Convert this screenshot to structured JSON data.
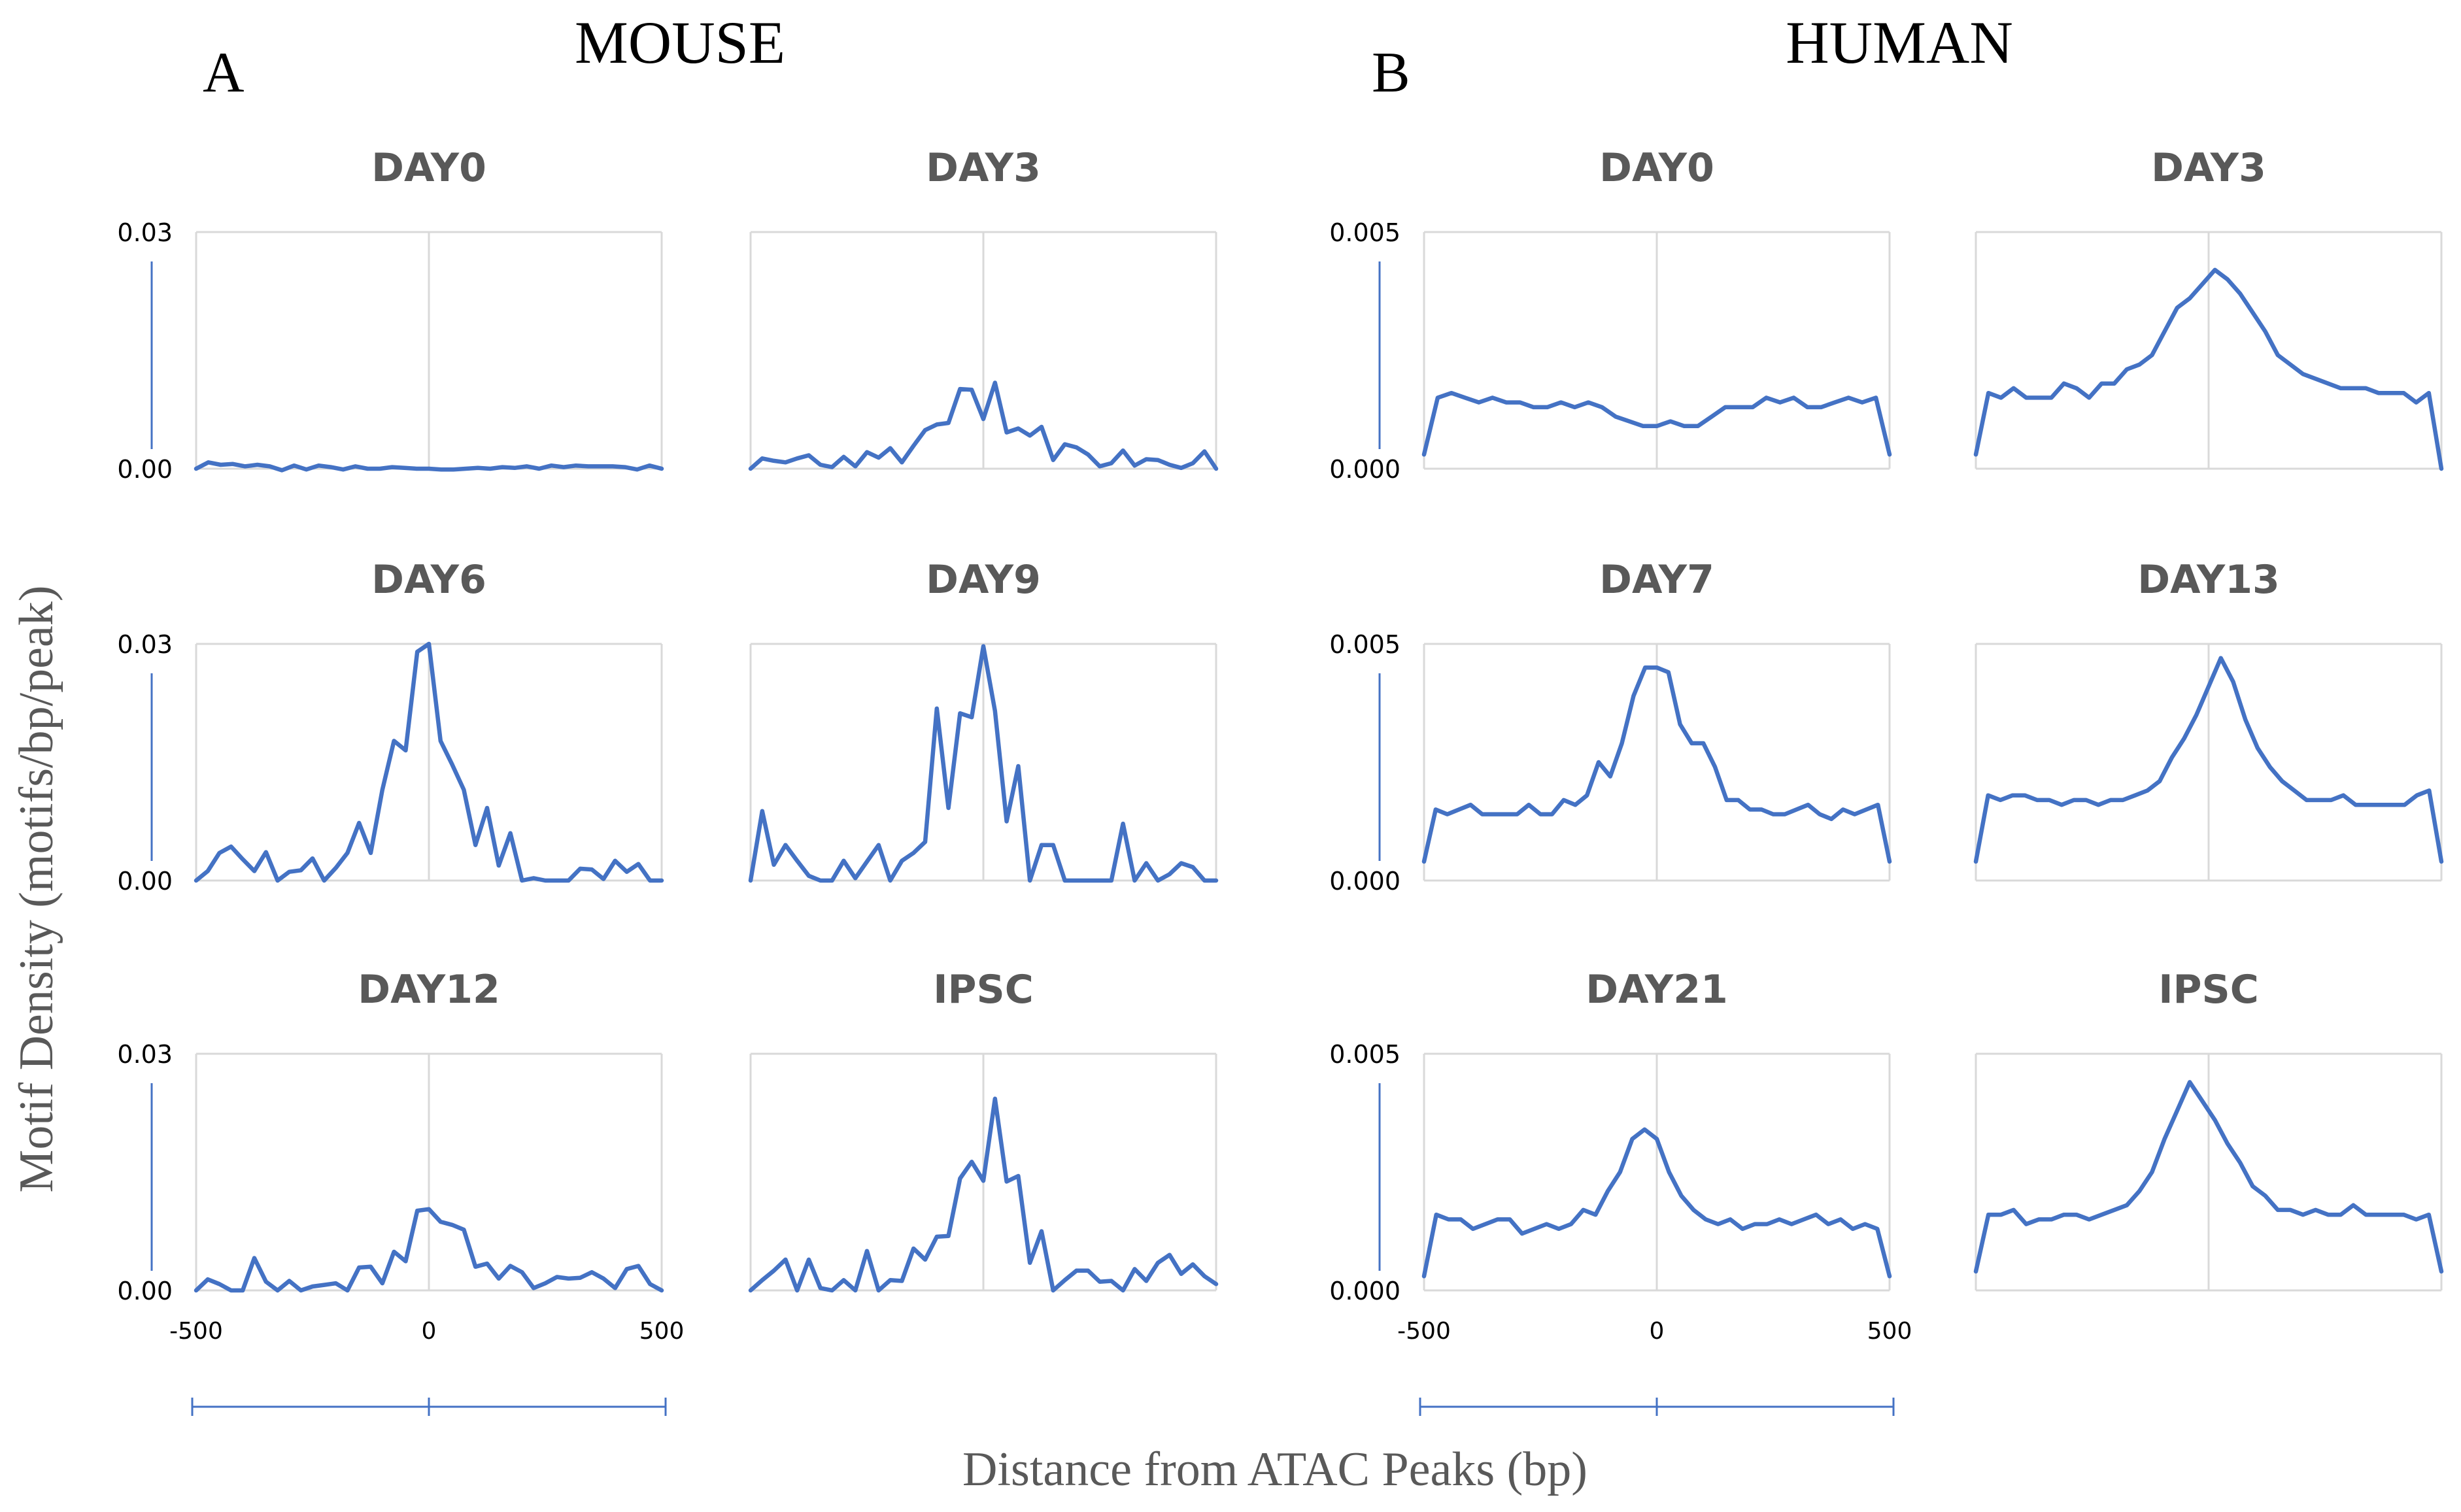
{
  "figure": {
    "panel_a_letter": "A",
    "panel_b_letter": "B",
    "mouse_title": "MOUSE",
    "human_title": "HUMAN",
    "ylabel": "Motif Density (motifs/bp/peak)",
    "xlabel": "Distance from ATAC Peaks (bp)",
    "x_tick_labels": [
      "-500",
      "0",
      "500"
    ],
    "colors": {
      "line": "#4472c4",
      "grid": "#d9d9d9",
      "title": "#595959",
      "text": "#000000",
      "axis_label": "#595959"
    }
  },
  "chart_data": [
    {
      "type": "line",
      "group": "MOUSE",
      "title": "DAY0",
      "ylim": [
        0,
        0.03
      ],
      "yticks": [
        "0.00",
        "0.03"
      ],
      "xlim": [
        -500,
        500
      ],
      "values": [
        0.0,
        0.0008,
        0.0005,
        0.0006,
        0.0003,
        0.0005,
        0.0003,
        -0.0002,
        0.0004,
        -0.0001,
        0.0004,
        0.0002,
        -0.0001,
        0.0003,
        0.0,
        0.0,
        0.0002,
        0.0001,
        0.0,
        0.0,
        -0.0001,
        -0.0001,
        0.0,
        0.0001,
        0.0,
        0.0002,
        0.0001,
        0.0003,
        0.0,
        0.0004,
        0.0002,
        0.0004,
        0.0003,
        0.0003,
        0.0003,
        0.0002,
        -0.0001,
        0.0004,
        0.0
      ]
    },
    {
      "type": "line",
      "group": "MOUSE",
      "title": "DAY3",
      "ylim": [
        0,
        0.03
      ],
      "yticks": [],
      "xlim": [
        -500,
        500
      ],
      "values": [
        0.0,
        0.0013,
        0.001,
        0.0008,
        0.0013,
        0.0017,
        0.0005,
        0.0002,
        0.0015,
        0.0003,
        0.0021,
        0.0014,
        0.0026,
        0.0008,
        0.0029,
        0.0049,
        0.0056,
        0.0058,
        0.0101,
        0.01,
        0.0063,
        0.0109,
        0.0046,
        0.0051,
        0.0042,
        0.0053,
        0.0011,
        0.0031,
        0.0027,
        0.0018,
        0.0003,
        0.0007,
        0.0023,
        0.0004,
        0.0012,
        0.0011,
        0.0005,
        0.0001,
        0.0007,
        0.0022,
        0.0
      ]
    },
    {
      "type": "line",
      "group": "MOUSE",
      "title": "DAY6",
      "ylim": [
        0,
        0.03
      ],
      "yticks": [
        "0.00",
        "0.03"
      ],
      "xlim": [
        -500,
        500
      ],
      "values": [
        0.0,
        0.0012,
        0.0035,
        0.0043,
        0.0027,
        0.0012,
        0.0036,
        0.0,
        0.0011,
        0.0013,
        0.0028,
        0.0,
        0.0016,
        0.0035,
        0.0073,
        0.0035,
        0.0115,
        0.0177,
        0.0165,
        0.029,
        0.03,
        0.0177,
        0.0147,
        0.0115,
        0.0045,
        0.0092,
        0.0019,
        0.006,
        0.0,
        0.0003,
        0.0,
        0.0,
        0.0,
        0.0015,
        0.0014,
        0.0002,
        0.0025,
        0.0011,
        0.0021,
        0.0,
        0.0
      ]
    },
    {
      "type": "line",
      "group": "MOUSE",
      "title": "DAY9",
      "ylim": [
        0,
        0.03
      ],
      "yticks": [],
      "xlim": [
        -500,
        500
      ],
      "values": [
        0.0,
        0.0088,
        0.002,
        0.0045,
        0.0025,
        0.0006,
        0.0,
        0.0,
        0.0025,
        0.0003,
        0.0024,
        0.0045,
        0.0,
        0.0025,
        0.0035,
        0.0049,
        0.0218,
        0.0092,
        0.0212,
        0.0207,
        0.0297,
        0.0215,
        0.0075,
        0.0145,
        0.0,
        0.0045,
        0.0045,
        0.0,
        0.0,
        0.0,
        0.0,
        0.0,
        0.0072,
        0.0,
        0.0022,
        0.0,
        0.0008,
        0.0022,
        0.0017,
        0.0,
        0.0
      ]
    },
    {
      "type": "line",
      "group": "MOUSE",
      "title": "DAY12",
      "ylim": [
        0,
        0.03
      ],
      "yticks": [
        "0.00",
        "0.03"
      ],
      "xlim": [
        -500,
        500
      ],
      "values": [
        0.0,
        0.0014,
        0.0008,
        0.0,
        0.0,
        0.0041,
        0.0011,
        0.0,
        0.0012,
        0.0,
        0.0005,
        0.0007,
        0.0009,
        0.0,
        0.0029,
        0.003,
        0.0009,
        0.0049,
        0.0037,
        0.0101,
        0.0103,
        0.0087,
        0.0083,
        0.0077,
        0.003,
        0.0034,
        0.0015,
        0.0031,
        0.0023,
        0.0003,
        0.0009,
        0.0017,
        0.0015,
        0.0016,
        0.0023,
        0.0015,
        0.0003,
        0.0027,
        0.0031,
        0.0008,
        0.0
      ]
    },
    {
      "type": "line",
      "group": "MOUSE",
      "title": "IPSC",
      "ylim": [
        0,
        0.03
      ],
      "yticks": [],
      "xlim": [
        -500,
        500
      ],
      "values": [
        0.0,
        0.0013,
        0.0025,
        0.0039,
        0.0,
        0.0039,
        0.0003,
        0.0,
        0.0013,
        0.0,
        0.005,
        0.0,
        0.0013,
        0.0012,
        0.0053,
        0.0039,
        0.0068,
        0.0069,
        0.0142,
        0.0163,
        0.0139,
        0.0243,
        0.0138,
        0.0145,
        0.0035,
        0.0075,
        0.0,
        0.0013,
        0.0025,
        0.0025,
        0.0011,
        0.0012,
        0.0,
        0.0027,
        0.0012,
        0.0035,
        0.0045,
        0.0021,
        0.0033,
        0.0018,
        0.0008
      ]
    },
    {
      "type": "line",
      "group": "HUMAN",
      "title": "DAY0",
      "ylim": [
        0,
        0.005
      ],
      "yticks": [
        "0.000",
        "0.005"
      ],
      "xlim": [
        -500,
        500
      ],
      "values": [
        0.0003,
        0.0015,
        0.0016,
        0.0015,
        0.0014,
        0.0015,
        0.0014,
        0.0014,
        0.0013,
        0.0013,
        0.0014,
        0.0013,
        0.0014,
        0.0013,
        0.0011,
        0.001,
        0.0009,
        0.0009,
        0.001,
        0.0009,
        0.0009,
        0.0011,
        0.0013,
        0.0013,
        0.0013,
        0.0015,
        0.0014,
        0.0015,
        0.0013,
        0.0013,
        0.0014,
        0.0015,
        0.0014,
        0.0015,
        0.0003
      ]
    },
    {
      "type": "line",
      "group": "HUMAN",
      "title": "DAY3",
      "ylim": [
        0,
        0.005
      ],
      "yticks": [],
      "xlim": [
        -500,
        500
      ],
      "values": [
        0.0003,
        0.0016,
        0.0015,
        0.0017,
        0.0015,
        0.0015,
        0.0015,
        0.0018,
        0.0017,
        0.0015,
        0.0018,
        0.0018,
        0.0021,
        0.0022,
        0.0024,
        0.0029,
        0.0034,
        0.0036,
        0.0039,
        0.0042,
        0.004,
        0.0037,
        0.0033,
        0.0029,
        0.0024,
        0.0022,
        0.002,
        0.0019,
        0.0018,
        0.0017,
        0.0017,
        0.0017,
        0.0016,
        0.0016,
        0.0016,
        0.0014,
        0.0016,
        0.0
      ]
    },
    {
      "type": "line",
      "group": "HUMAN",
      "title": "DAY7",
      "ylim": [
        0,
        0.005
      ],
      "yticks": [
        "0.000",
        "0.005"
      ],
      "xlim": [
        -500,
        500
      ],
      "values": [
        0.0004,
        0.0015,
        0.0014,
        0.0015,
        0.0016,
        0.0014,
        0.0014,
        0.0014,
        0.0014,
        0.0016,
        0.0014,
        0.0014,
        0.0017,
        0.0016,
        0.0018,
        0.0025,
        0.0022,
        0.0029,
        0.0039,
        0.0045,
        0.0045,
        0.0044,
        0.0033,
        0.0029,
        0.0029,
        0.0024,
        0.0017,
        0.0017,
        0.0015,
        0.0015,
        0.0014,
        0.0014,
        0.0015,
        0.0016,
        0.0014,
        0.0013,
        0.0015,
        0.0014,
        0.0015,
        0.0016,
        0.0004
      ]
    },
    {
      "type": "line",
      "group": "HUMAN",
      "title": "DAY13",
      "ylim": [
        0,
        0.005
      ],
      "yticks": [],
      "xlim": [
        -500,
        500
      ],
      "values": [
        0.0004,
        0.0018,
        0.0017,
        0.0018,
        0.0018,
        0.0017,
        0.0017,
        0.0016,
        0.0017,
        0.0017,
        0.0016,
        0.0017,
        0.0017,
        0.0018,
        0.0019,
        0.0021,
        0.0026,
        0.003,
        0.0035,
        0.0041,
        0.0047,
        0.0042,
        0.0034,
        0.0028,
        0.0024,
        0.0021,
        0.0019,
        0.0017,
        0.0017,
        0.0017,
        0.0018,
        0.0016,
        0.0016,
        0.0016,
        0.0016,
        0.0016,
        0.0018,
        0.0019,
        0.0004
      ]
    },
    {
      "type": "line",
      "group": "HUMAN",
      "title": "DAY21",
      "ylim": [
        0,
        0.005
      ],
      "yticks": [
        "0.000",
        "0.005"
      ],
      "xlim": [
        -500,
        500
      ],
      "values": [
        0.0003,
        0.0016,
        0.0015,
        0.0015,
        0.0013,
        0.0014,
        0.0015,
        0.0015,
        0.0012,
        0.0013,
        0.0014,
        0.0013,
        0.0014,
        0.0017,
        0.0016,
        0.0021,
        0.0025,
        0.0032,
        0.0034,
        0.0032,
        0.0025,
        0.002,
        0.0017,
        0.0015,
        0.0014,
        0.0015,
        0.0013,
        0.0014,
        0.0014,
        0.0015,
        0.0014,
        0.0015,
        0.0016,
        0.0014,
        0.0015,
        0.0013,
        0.0014,
        0.0013,
        0.0003
      ]
    },
    {
      "type": "line",
      "group": "HUMAN",
      "title": "IPSC",
      "ylim": [
        0,
        0.005
      ],
      "yticks": [],
      "xlim": [
        -500,
        500
      ],
      "values": [
        0.0004,
        0.0016,
        0.0016,
        0.0017,
        0.0014,
        0.0015,
        0.0015,
        0.0016,
        0.0016,
        0.0015,
        0.0016,
        0.0017,
        0.0018,
        0.0021,
        0.0025,
        0.0032,
        0.0038,
        0.0044,
        0.004,
        0.0036,
        0.0031,
        0.0027,
        0.0022,
        0.002,
        0.0017,
        0.0017,
        0.0016,
        0.0017,
        0.0016,
        0.0016,
        0.0018,
        0.0016,
        0.0016,
        0.0016,
        0.0016,
        0.0015,
        0.0016,
        0.0004
      ]
    }
  ]
}
